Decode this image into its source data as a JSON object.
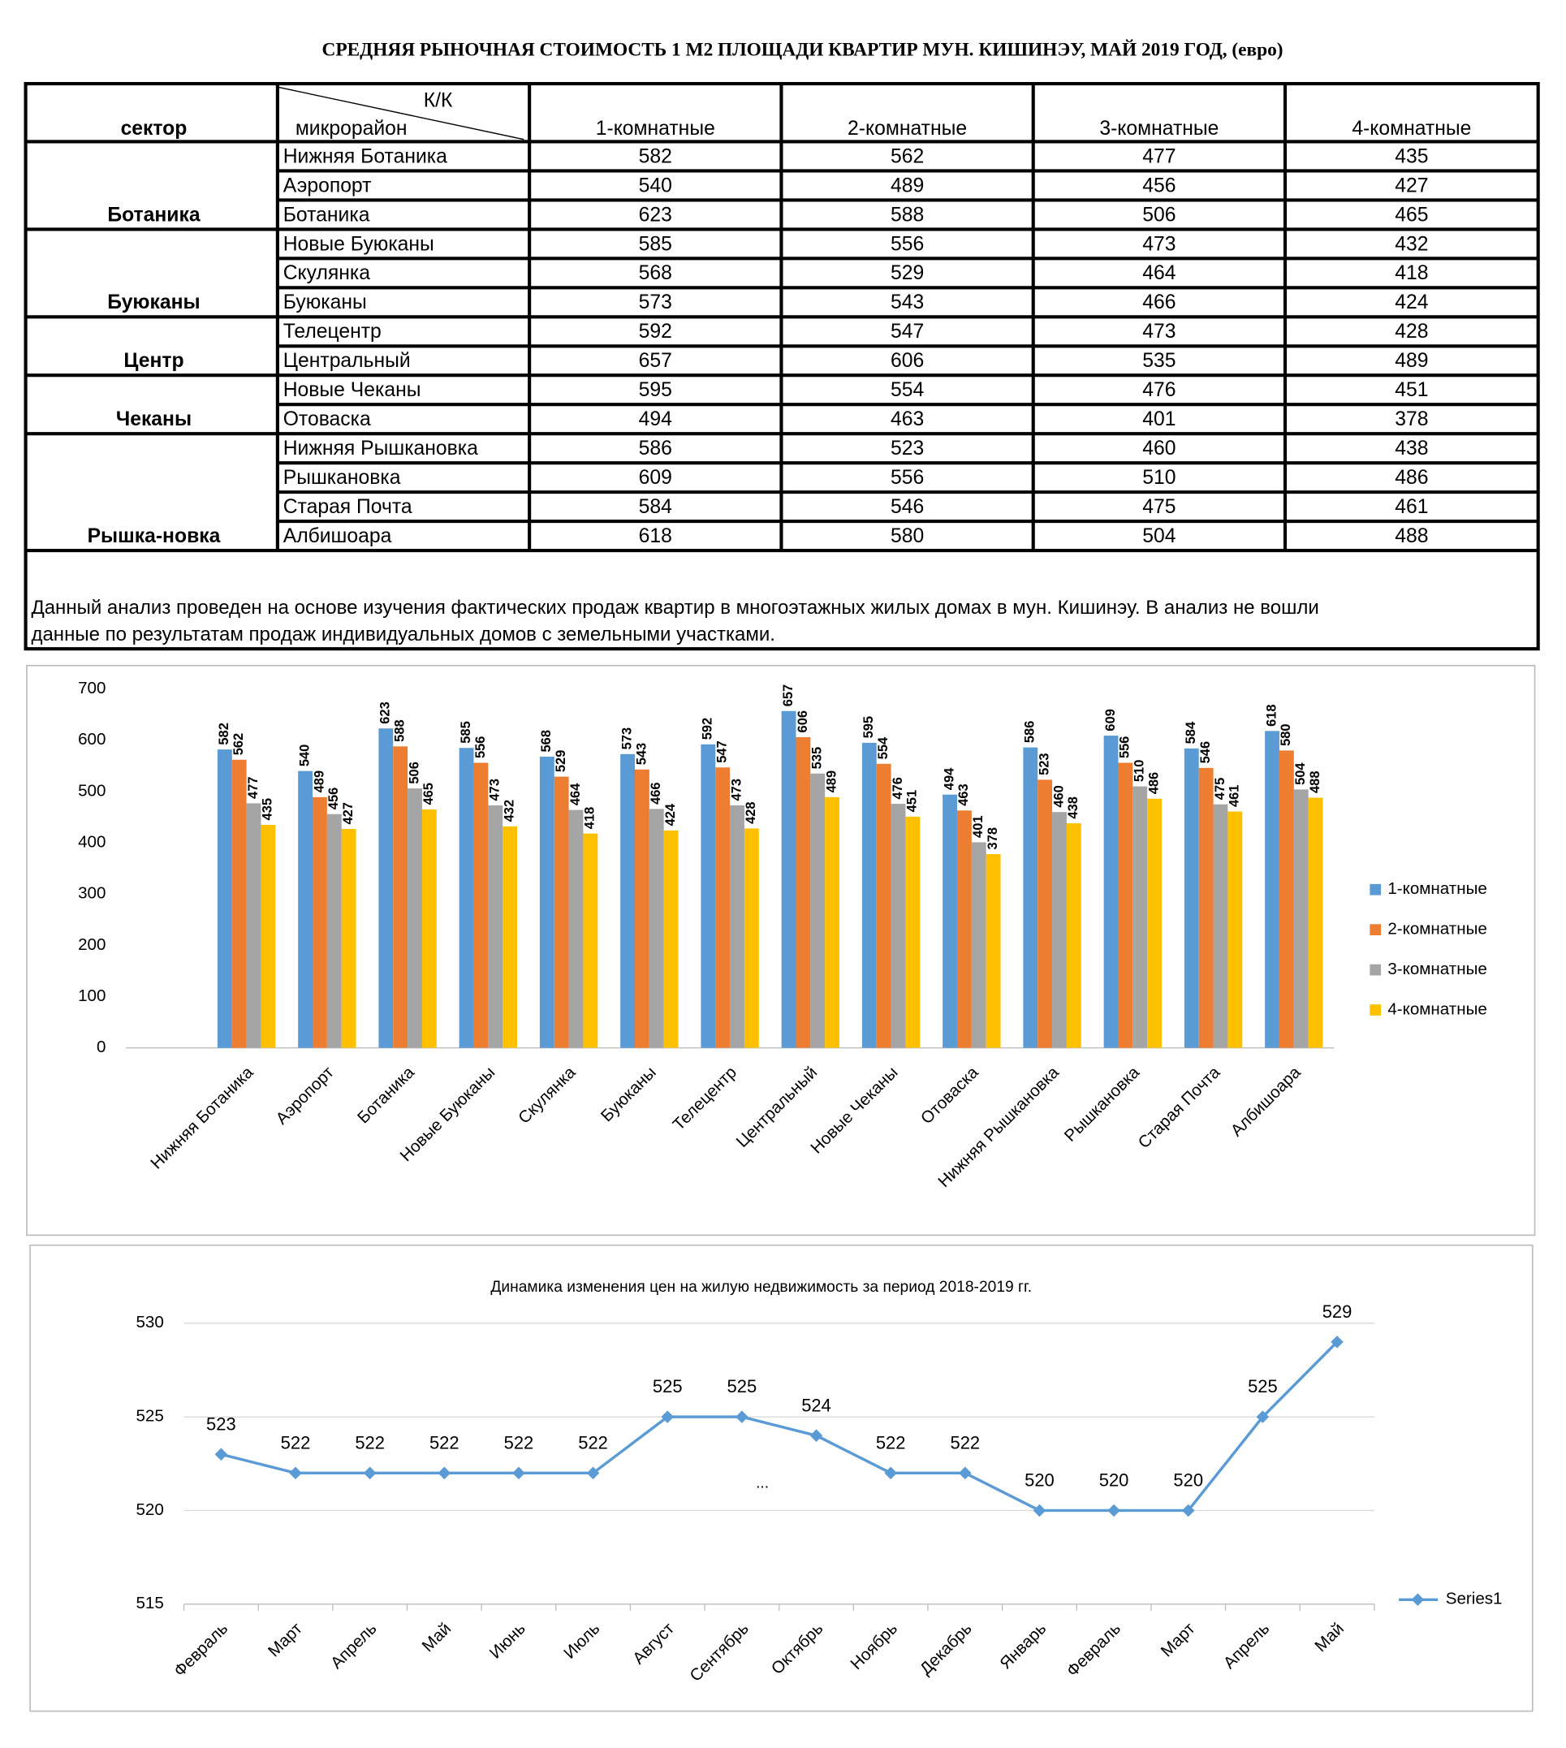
{
  "title": "СРЕДНЯЯ  РЫНОЧНАЯ  СТОИМОСТЬ  1 М2  ПЛОЩАДИ  КВАРТИР МУН.  КИШИНЭУ, МАЙ 2019 ГОД, (евро)",
  "table": {
    "header": {
      "sector": "сектор",
      "corner_top": "К/К",
      "corner_bottom": "микрорайон",
      "columns": [
        "1-комнатные",
        "2-комнатные",
        "3-комнатные",
        "4-комнатные"
      ]
    },
    "groups": [
      {
        "sector": "Ботаника",
        "rows": [
          {
            "name": "Нижняя Ботаника",
            "values": [
              582,
              562,
              477,
              435
            ]
          },
          {
            "name": "Аэропорт",
            "values": [
              540,
              489,
              456,
              427
            ]
          },
          {
            "name": "Ботаника",
            "values": [
              623,
              588,
              506,
              465
            ]
          }
        ]
      },
      {
        "sector": "Буюканы",
        "rows": [
          {
            "name": "Новые Буюканы",
            "values": [
              585,
              556,
              473,
              432
            ]
          },
          {
            "name": "Скулянка",
            "values": [
              568,
              529,
              464,
              418
            ]
          },
          {
            "name": "Буюканы",
            "values": [
              573,
              543,
              466,
              424
            ]
          }
        ]
      },
      {
        "sector": "Центр",
        "rows": [
          {
            "name": "Телецентр",
            "values": [
              592,
              547,
              473,
              428
            ]
          },
          {
            "name": "Центральный",
            "values": [
              657,
              606,
              535,
              489
            ]
          }
        ]
      },
      {
        "sector": "Чеканы",
        "rows": [
          {
            "name": "Новые Чеканы",
            "values": [
              595,
              554,
              476,
              451
            ]
          },
          {
            "name": "Отоваска",
            "values": [
              494,
              463,
              401,
              378
            ]
          }
        ]
      },
      {
        "sector": "Рышка-новка",
        "rows": [
          {
            "name": "Нижняя Рышкановка",
            "values": [
              586,
              523,
              460,
              438
            ]
          },
          {
            "name": "Рышкановка",
            "values": [
              609,
              556,
              510,
              486
            ]
          },
          {
            "name": "Старая Почта",
            "values": [
              584,
              546,
              475,
              461
            ]
          },
          {
            "name": "Албишоара",
            "values": [
              618,
              580,
              504,
              488
            ]
          }
        ]
      }
    ]
  },
  "note": [
    "Данный анализ проведен на основе изучения фактических продаж квартир в многоэтажных жилых домах в мун. Кишинэу. В анализ не вошли",
    "данные по результатам  продаж индивидуальных домов с земельными участками."
  ],
  "chart_data": [
    {
      "type": "bar",
      "categories": [
        "Нижняя Ботаника",
        "Аэропорт",
        "Ботаника",
        "Новые Буюканы",
        "Скулянка",
        "Буюканы",
        "Телецентр",
        "Центральный",
        "Новые Чеканы",
        "Отоваска",
        "Нижняя Рышкановка",
        "Рышкановка",
        "Старая Почта",
        "Албишоара"
      ],
      "series": [
        {
          "name": "1-комнатные",
          "color": "#5b9bd5",
          "values": [
            582,
            540,
            623,
            585,
            568,
            573,
            592,
            657,
            595,
            494,
            586,
            609,
            584,
            618
          ]
        },
        {
          "name": "2-комнатные",
          "color": "#ed7d31",
          "values": [
            562,
            489,
            588,
            556,
            529,
            543,
            547,
            606,
            554,
            463,
            523,
            556,
            546,
            580
          ]
        },
        {
          "name": "3-комнатные",
          "color": "#a5a5a5",
          "values": [
            477,
            456,
            506,
            473,
            464,
            466,
            473,
            535,
            476,
            401,
            460,
            510,
            475,
            504
          ]
        },
        {
          "name": "4-комнатные",
          "color": "#ffc000",
          "values": [
            435,
            427,
            465,
            432,
            418,
            424,
            428,
            489,
            451,
            378,
            438,
            486,
            461,
            488
          ]
        }
      ],
      "ylim": [
        0,
        700
      ],
      "yticks": [
        0,
        100,
        200,
        300,
        400,
        500,
        600,
        700
      ],
      "grid": false,
      "legend": "right"
    },
    {
      "type": "line",
      "title": "Динамика изменения цен на жилую недвижимость за период 2018-2019 гг.",
      "categories": [
        "Февраль",
        "Март",
        "Апрель",
        "Май",
        "Июнь",
        "Июль",
        "Август",
        "Сентябрь",
        "Октябрь",
        "Ноябрь",
        "Декабрь",
        "Январь",
        "Февраль",
        "Март",
        "Апрель",
        "Май"
      ],
      "series": [
        {
          "name": "Series1",
          "color": "#5b9bd5",
          "values": [
            523,
            522,
            522,
            522,
            522,
            522,
            525,
            525,
            524,
            522,
            522,
            520,
            520,
            520,
            525,
            529
          ]
        }
      ],
      "annotation": "...",
      "ylim": [
        515,
        530
      ],
      "yticks": [
        515,
        520,
        525,
        530
      ],
      "grid": true,
      "legend": "right"
    }
  ]
}
